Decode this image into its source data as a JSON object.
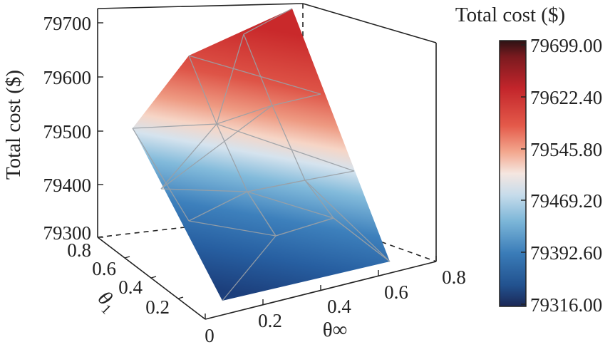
{
  "chart_data": {
    "type": "surface",
    "title": "",
    "zlabel": "Total cost ($)",
    "xlabel": "θ∞",
    "ylabel_main": "θ",
    "ylabel_sub": "1",
    "x_ticks": [
      "0",
      "0.2",
      "0.4",
      "0.6",
      "0.8"
    ],
    "y_ticks": [
      "0.2",
      "0.4",
      "0.6",
      "0.8"
    ],
    "z_ticks": [
      "79300",
      "79400",
      "79500",
      "79600",
      "79700"
    ],
    "zlim": [
      79300,
      79700
    ],
    "colorbar": {
      "title": "Total cost ($)",
      "ticks": [
        "79699.00",
        "79622.40",
        "79545.80",
        "79469.20",
        "79392.60",
        "79316.00"
      ],
      "range": [
        79316,
        79699
      ],
      "colors": [
        "#2b1012",
        "#b62126",
        "#dc3e37",
        "#ef6e5c",
        "#f8d0bd",
        "#c8dcea",
        "#6fb0d4",
        "#3878b4",
        "#1f4f8e",
        "#1a2a55"
      ]
    },
    "grid": false,
    "legend": "colorbar-right",
    "surface_points": [
      {
        "x": 0.0,
        "y": 0.8,
        "z": 79314
      },
      {
        "x": 0.8,
        "y": 0.8,
        "z": 79382
      },
      {
        "x": 0.0,
        "y": 0.0,
        "z": 79511
      },
      {
        "x": 0.8,
        "y": 0.0,
        "z": 79699
      }
    ]
  }
}
